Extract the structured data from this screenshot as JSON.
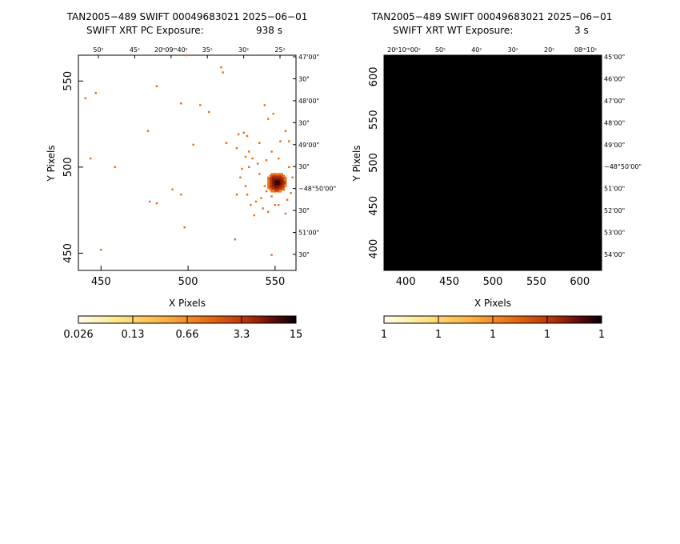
{
  "chart_data": [
    {
      "type": "heatmap",
      "title": "TAN2005−489 SWIFT 00049683021 2025−06−01",
      "subtitle_label": "SWIFT XRT PC Exposure:",
      "subtitle_value": "938 s",
      "xlabel": "X Pixels",
      "ylabel": "Y Pixels",
      "xlim": [
        437,
        562
      ],
      "ylim": [
        440,
        565
      ],
      "xticks": [
        450,
        500,
        550
      ],
      "yticks": [
        450,
        500,
        550
      ],
      "xtick_labels": [
        "450",
        "500",
        "550"
      ],
      "ytick_labels": [
        "450",
        "500",
        "550"
      ],
      "ra_labels": [
        "50ˢ",
        "45ˢ",
        "20ʰ09ᵐ40ˢ",
        "35ˢ",
        "30ˢ",
        "25ˢ"
      ],
      "dec_labels": [
        "−47°",
        "30″",
        "48′ 00″",
        "30″",
        "49′ 00″",
        "30″",
        "−48°50′ 00″",
        "30″",
        "51′ 00″",
        "30″"
      ],
      "top_labels": [
        "50ˢ",
        "45ˢ",
        "20ʰ09ᵐ40ˢ",
        "35ˢ",
        "30ˢ",
        "25ˢ"
      ],
      "right_labels": [
        "47'00\"",
        "30\"",
        "48'00\"",
        "30\"",
        "49'00\"",
        "30\"",
        "−48°50'00\"",
        "30\"",
        "51'00\"",
        "30\""
      ],
      "colorbar_labels": [
        "0.026",
        "0.13",
        "0.66",
        "3.3",
        "15"
      ],
      "colormap": [
        "#fffff0",
        "#fde68a",
        "#fbb040",
        "#e86a10",
        "#b2300c",
        "#5c0a0a",
        "#000000"
      ],
      "source_center": [
        551,
        491
      ],
      "scatter_counts": [
        [
          441,
          540
        ],
        [
          447,
          543
        ],
        [
          450,
          452
        ],
        [
          444,
          505
        ],
        [
          458,
          500
        ],
        [
          477,
          521
        ],
        [
          482,
          547
        ],
        [
          496,
          537
        ],
        [
          499,
          565
        ],
        [
          507,
          536
        ],
        [
          512,
          532
        ],
        [
          503,
          513
        ],
        [
          519,
          558
        ],
        [
          520,
          555
        ],
        [
          522,
          514
        ],
        [
          529,
          519
        ],
        [
          528,
          484
        ],
        [
          491,
          487
        ],
        [
          498,
          465
        ],
        [
          496,
          484
        ],
        [
          478,
          480
        ],
        [
          482,
          479
        ],
        [
          527,
          458
        ],
        [
          532,
          520
        ],
        [
          534,
          518
        ],
        [
          535,
          509
        ],
        [
          544,
          536
        ],
        [
          546,
          528
        ],
        [
          549,
          531
        ],
        [
          553,
          515
        ],
        [
          556,
          521
        ],
        [
          558,
          515
        ],
        [
          541,
          514
        ],
        [
          545,
          504
        ],
        [
          530,
          494
        ],
        [
          533,
          489
        ],
        [
          534,
          484
        ],
        [
          536,
          478
        ],
        [
          539,
          480
        ],
        [
          541,
          496
        ],
        [
          543,
          476
        ],
        [
          546,
          474
        ],
        [
          548,
          449
        ],
        [
          552,
          478
        ],
        [
          556,
          473
        ],
        [
          535,
          500
        ],
        [
          540,
          502
        ],
        [
          538,
          472
        ],
        [
          533,
          506
        ],
        [
          528,
          511
        ],
        [
          531,
          499
        ],
        [
          537,
          505
        ],
        [
          548,
          509
        ],
        [
          552,
          505
        ],
        [
          558,
          500
        ],
        [
          560,
          494
        ],
        [
          559,
          485
        ],
        [
          557,
          481
        ],
        [
          545,
          486
        ],
        [
          544,
          489
        ],
        [
          548,
          483
        ],
        [
          542,
          482
        ],
        [
          550,
          478
        ]
      ]
    },
    {
      "type": "heatmap",
      "title": "TAN2005−489 SWIFT 00049683021 2025−06−01",
      "subtitle_label": "SWIFT XRT WT Exposure:",
      "subtitle_value": "3 s",
      "xlabel": "X Pixels",
      "ylabel": "Y Pixels",
      "xlim": [
        375,
        625
      ],
      "ylim": [
        375,
        625
      ],
      "xtick_labels": [
        "400",
        "450",
        "500",
        "550",
        "600"
      ],
      "ytick_labels": [
        "400",
        "450",
        "500",
        "550",
        "600"
      ],
      "xticks": [
        400,
        450,
        500,
        550,
        600
      ],
      "yticks": [
        400,
        450,
        500,
        550,
        600
      ],
      "top_labels": [
        "20ʰ10ᵐ00ˢ",
        "50ˢ",
        "40ˢ",
        "30ˢ",
        "20ˢ",
        "08ᵐ10ˢ"
      ],
      "right_labels": [
        "45'00\"",
        "46'00\"",
        "47'00\"",
        "48'00\"",
        "49'00\"",
        "−48°50'00\"",
        "51'00\"",
        "52'00\"",
        "53'00\"",
        "54'00\""
      ],
      "colorbar_labels": [
        "1",
        "1",
        "1",
        "1",
        "1"
      ],
      "colormap": [
        "#fffff0",
        "#fde68a",
        "#fbb040",
        "#e86a10",
        "#b2300c",
        "#5c0a0a",
        "#000000"
      ]
    }
  ]
}
